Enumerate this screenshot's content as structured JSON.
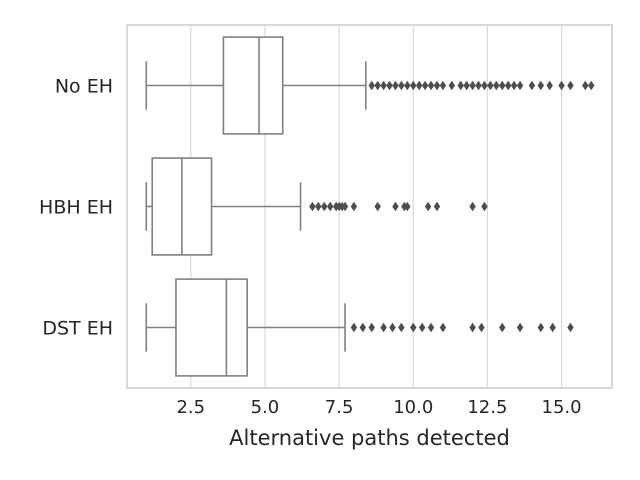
{
  "chart_data": {
    "type": "boxplot",
    "orientation": "horizontal",
    "xlabel": "Alternative paths detected",
    "ylabel": "",
    "xlim": [
      0.35,
      16.7
    ],
    "xticks": [
      2.5,
      5.0,
      7.5,
      10.0,
      12.5,
      15.0
    ],
    "xtick_labels": [
      "2.5",
      "5.0",
      "7.5",
      "10.0",
      "12.5",
      "15.0"
    ],
    "grid": "vertical",
    "categories": [
      "No EH",
      "HBH EH",
      "DST EH"
    ],
    "boxes": [
      {
        "name": "No EH",
        "whisker_low": 1.0,
        "q1": 3.6,
        "median": 4.8,
        "q3": 5.6,
        "whisker_high": 8.4,
        "outliers": [
          8.6,
          8.8,
          9.0,
          9.2,
          9.4,
          9.6,
          9.8,
          10.0,
          10.2,
          10.4,
          10.6,
          10.8,
          11.0,
          11.3,
          11.6,
          11.8,
          12.0,
          12.2,
          12.4,
          12.6,
          12.8,
          13.0,
          13.2,
          13.4,
          13.6,
          14.0,
          14.3,
          14.6,
          15.0,
          15.3,
          15.8,
          16.0
        ]
      },
      {
        "name": "HBH EH",
        "whisker_low": 1.0,
        "q1": 1.2,
        "median": 2.2,
        "q3": 3.2,
        "whisker_high": 6.2,
        "outliers": [
          6.6,
          6.8,
          7.0,
          7.2,
          7.4,
          7.5,
          7.6,
          7.7,
          8.0,
          8.8,
          9.4,
          9.7,
          9.8,
          10.5,
          10.8,
          12.0,
          12.4
        ]
      },
      {
        "name": "DST EH",
        "whisker_low": 1.0,
        "q1": 2.0,
        "median": 3.7,
        "q3": 4.4,
        "whisker_high": 7.7,
        "outliers": [
          8.0,
          8.3,
          8.6,
          9.0,
          9.3,
          9.6,
          10.0,
          10.3,
          10.6,
          11.0,
          12.0,
          12.3,
          13.0,
          13.6,
          14.3,
          14.7,
          15.3
        ]
      }
    ],
    "colors": {
      "box_edge": "#808080",
      "outlier": "#4d4d4d",
      "grid": "#d9d9d9",
      "frame": "#cccccc",
      "text": "#262626"
    }
  }
}
